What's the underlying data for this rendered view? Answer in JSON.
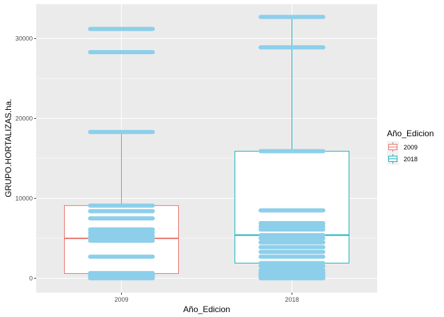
{
  "chart_data": {
    "type": "box",
    "title": "",
    "xlabel": "Año_Edicion",
    "ylabel": "GRUPO.HORTALIZAS.ha.",
    "ylim": [
      -1800,
      34300
    ],
    "yticks": [
      0,
      10000,
      20000,
      30000
    ],
    "ytick_labels": [
      "0",
      "10000",
      "20000",
      "30000"
    ],
    "categories": [
      "2009",
      "2018"
    ],
    "grid": true,
    "legend": {
      "title": "Año_Edicion",
      "placement": "right",
      "entries": [
        "2009",
        "2018"
      ]
    },
    "colors": {
      "2009": "#e8756b",
      "2018": "#1ab2bd",
      "points": "#8dcfea",
      "panel": "#ebebeb",
      "grid": "#ffffff"
    },
    "boxes": [
      {
        "category": "2009",
        "whisker_low": 0,
        "q1": 600,
        "median": 5000,
        "q3": 9100,
        "whisker_high": 18300,
        "points": [
          0,
          150,
          300,
          450,
          650,
          2700,
          4700,
          5000,
          5300,
          5700,
          6100,
          7500,
          8400,
          9100,
          18300,
          28300,
          31200
        ]
      },
      {
        "category": "2018",
        "whisker_low": 0,
        "q1": 1900,
        "median": 5400,
        "q3": 15900,
        "whisker_high": 32700,
        "points": [
          0,
          150,
          300,
          500,
          700,
          1000,
          1500,
          1900,
          2700,
          3300,
          3900,
          4500,
          5000,
          5400,
          6100,
          6500,
          6900,
          8500,
          15900,
          28900,
          32700
        ]
      }
    ]
  }
}
